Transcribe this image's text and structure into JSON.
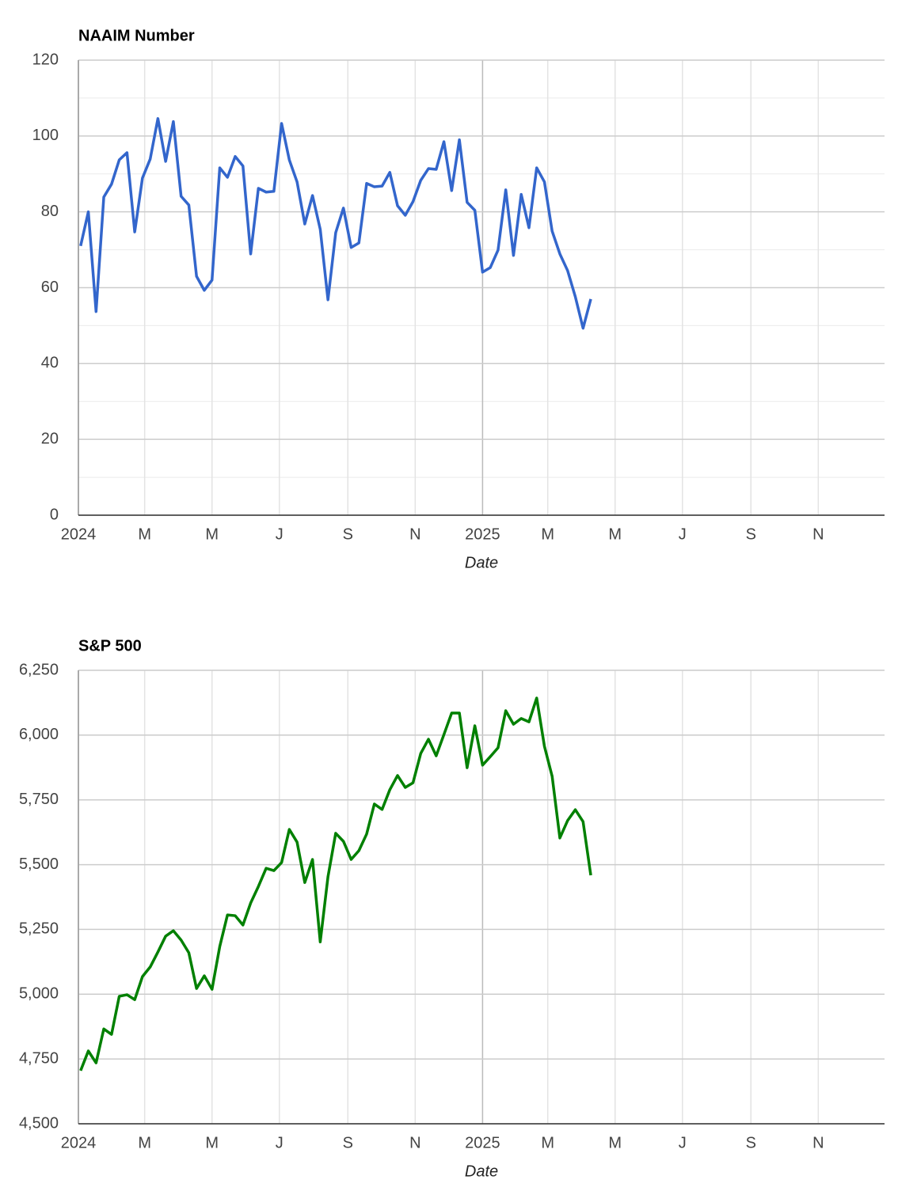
{
  "chart_data": [
    {
      "type": "line",
      "title": "NAAIM Number",
      "xlabel": "Date",
      "color": "#3366cc",
      "x": [
        "2024-01-03",
        "2024-01-10",
        "2024-01-17",
        "2024-01-24",
        "2024-01-31",
        "2024-02-07",
        "2024-02-14",
        "2024-02-21",
        "2024-02-28",
        "2024-03-06",
        "2024-03-13",
        "2024-03-20",
        "2024-03-27",
        "2024-04-03",
        "2024-04-10",
        "2024-04-17",
        "2024-04-24",
        "2024-05-01",
        "2024-05-08",
        "2024-05-15",
        "2024-05-22",
        "2024-05-29",
        "2024-06-05",
        "2024-06-12",
        "2024-06-19",
        "2024-06-26",
        "2024-07-03",
        "2024-07-10",
        "2024-07-17",
        "2024-07-24",
        "2024-07-31",
        "2024-08-07",
        "2024-08-14",
        "2024-08-21",
        "2024-08-28",
        "2024-09-04",
        "2024-09-11",
        "2024-09-18",
        "2024-09-25",
        "2024-10-02",
        "2024-10-09",
        "2024-10-16",
        "2024-10-23",
        "2024-10-30",
        "2024-11-06",
        "2024-11-13",
        "2024-11-20",
        "2024-11-27",
        "2024-12-04",
        "2024-12-11",
        "2024-12-18",
        "2024-12-25",
        "2025-01-01",
        "2025-01-08",
        "2025-01-15",
        "2025-01-22",
        "2025-01-29",
        "2025-02-05",
        "2025-02-12",
        "2025-02-19",
        "2025-02-26",
        "2025-03-05",
        "2025-03-12",
        "2025-03-19",
        "2025-03-26",
        "2025-04-02",
        "2025-04-09"
      ],
      "values": [
        71.0,
        80.0,
        53.7,
        83.9,
        87.3,
        93.7,
        95.6,
        74.7,
        88.9,
        93.9,
        104.6,
        93.3,
        103.8,
        84.1,
        81.8,
        63.0,
        59.3,
        62.0,
        91.6,
        89.1,
        94.6,
        92.1,
        68.9,
        86.2,
        85.2,
        85.4,
        103.3,
        93.7,
        87.9,
        76.8,
        84.3,
        75.4,
        56.8,
        74.5,
        81.0,
        70.6,
        71.8,
        87.5,
        86.6,
        86.8,
        90.4,
        81.6,
        79.1,
        82.7,
        88.3,
        91.4,
        91.2,
        98.5,
        85.6,
        99.0,
        82.5,
        80.4,
        64.1,
        65.3,
        69.9,
        85.8,
        68.5,
        84.6,
        75.8,
        91.6,
        87.9,
        74.9,
        68.9,
        64.5,
        57.6,
        49.3,
        57.0
      ],
      "xlim": [
        "2024-01-01",
        "2025-12-31"
      ],
      "xticks": [
        {
          "value": "2024-01-01",
          "label": "2024"
        },
        {
          "value": "2024-03-01",
          "label": "M"
        },
        {
          "value": "2024-05-01",
          "label": "M"
        },
        {
          "value": "2024-07-01",
          "label": "J"
        },
        {
          "value": "2024-09-01",
          "label": "S"
        },
        {
          "value": "2024-11-01",
          "label": "N"
        },
        {
          "value": "2025-01-01",
          "label": "2025"
        },
        {
          "value": "2025-03-01",
          "label": "M"
        },
        {
          "value": "2025-05-01",
          "label": "M"
        },
        {
          "value": "2025-07-01",
          "label": "J"
        },
        {
          "value": "2025-09-01",
          "label": "S"
        },
        {
          "value": "2025-11-01",
          "label": "N"
        }
      ],
      "ylim": [
        0,
        120
      ],
      "yticks": [
        0,
        20,
        40,
        60,
        80,
        100,
        120
      ],
      "minor_yticks": [
        10,
        30,
        50,
        70,
        90,
        110
      ],
      "grid": true
    },
    {
      "type": "line",
      "title": "S&P 500",
      "xlabel": "Date",
      "color": "#008000",
      "x": [
        "2024-01-03",
        "2024-01-10",
        "2024-01-17",
        "2024-01-24",
        "2024-01-31",
        "2024-02-07",
        "2024-02-14",
        "2024-02-21",
        "2024-02-28",
        "2024-03-06",
        "2024-03-13",
        "2024-03-20",
        "2024-03-27",
        "2024-04-03",
        "2024-04-10",
        "2024-04-17",
        "2024-04-24",
        "2024-05-01",
        "2024-05-08",
        "2024-05-15",
        "2024-05-22",
        "2024-05-29",
        "2024-06-05",
        "2024-06-12",
        "2024-06-19",
        "2024-06-26",
        "2024-07-03",
        "2024-07-10",
        "2024-07-17",
        "2024-07-24",
        "2024-07-31",
        "2024-08-07",
        "2024-08-14",
        "2024-08-21",
        "2024-08-28",
        "2024-09-04",
        "2024-09-11",
        "2024-09-18",
        "2024-09-25",
        "2024-10-02",
        "2024-10-09",
        "2024-10-16",
        "2024-10-23",
        "2024-10-30",
        "2024-11-06",
        "2024-11-13",
        "2024-11-20",
        "2024-11-27",
        "2024-12-04",
        "2024-12-11",
        "2024-12-18",
        "2024-12-25",
        "2025-01-01",
        "2025-01-08",
        "2025-01-15",
        "2025-01-22",
        "2025-01-29",
        "2025-02-05",
        "2025-02-12",
        "2025-02-19",
        "2025-02-26",
        "2025-03-05",
        "2025-03-12",
        "2025-03-19",
        "2025-03-26",
        "2025-04-02",
        "2025-04-09"
      ],
      "values": [
        4705,
        4781,
        4735,
        4866,
        4845,
        4992,
        4998,
        4979,
        5068,
        5105,
        5163,
        5224,
        5245,
        5209,
        5160,
        5022,
        5071,
        5019,
        5184,
        5306,
        5303,
        5267,
        5352,
        5416,
        5486,
        5477,
        5508,
        5636,
        5587,
        5431,
        5520,
        5202,
        5453,
        5621,
        5590,
        5520,
        5554,
        5618,
        5734,
        5713,
        5789,
        5844,
        5798,
        5816,
        5929,
        5984,
        5920,
        6002,
        6085,
        6085,
        5874,
        6036,
        5884,
        5917,
        5951,
        6094,
        6042,
        6064,
        6051,
        6143,
        5957,
        5841,
        5603,
        5670,
        5712,
        5666,
        5459
      ],
      "xlim": [
        "2024-01-01",
        "2025-12-31"
      ],
      "xticks": [
        {
          "value": "2024-01-01",
          "label": "2024"
        },
        {
          "value": "2024-03-01",
          "label": "M"
        },
        {
          "value": "2024-05-01",
          "label": "M"
        },
        {
          "value": "2024-07-01",
          "label": "J"
        },
        {
          "value": "2024-09-01",
          "label": "S"
        },
        {
          "value": "2024-11-01",
          "label": "N"
        },
        {
          "value": "2025-01-01",
          "label": "2025"
        },
        {
          "value": "2025-03-01",
          "label": "M"
        },
        {
          "value": "2025-05-01",
          "label": "M"
        },
        {
          "value": "2025-07-01",
          "label": "J"
        },
        {
          "value": "2025-09-01",
          "label": "S"
        },
        {
          "value": "2025-11-01",
          "label": "N"
        }
      ],
      "ylim": [
        4500,
        6250
      ],
      "yticks": [
        {
          "value": 4500,
          "label": "4,500"
        },
        {
          "value": 4750,
          "label": "4,750"
        },
        {
          "value": 5000,
          "label": "5,000"
        },
        {
          "value": 5250,
          "label": "5,250"
        },
        {
          "value": 5500,
          "label": "5,500"
        },
        {
          "value": 5750,
          "label": "5,750"
        },
        {
          "value": 6000,
          "label": "6,000"
        },
        {
          "value": 6250,
          "label": "6,250"
        }
      ],
      "grid": true
    }
  ]
}
